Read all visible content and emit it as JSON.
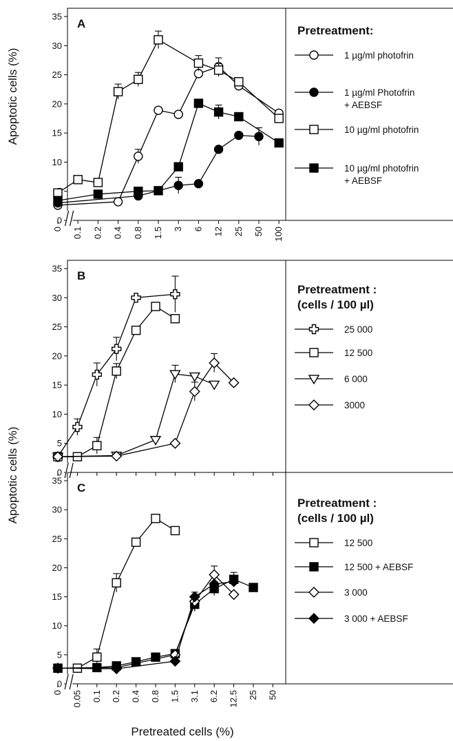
{
  "figure": {
    "y_axis_label": "Apoptotic  cells  (%)",
    "x_axis_label": "Pretreated  cells  (%)"
  },
  "chart_data": [
    {
      "panel": "A",
      "type": "line",
      "yticks": [
        "0",
        "5",
        "10",
        "15",
        "20",
        "25",
        "30",
        "35"
      ],
      "ylim": [
        0,
        35
      ],
      "categories": [
        "0",
        "0.1",
        "0.2",
        "0.4",
        "0.8",
        "1.5",
        "3",
        "6",
        "12",
        "25",
        "50",
        "100"
      ],
      "axis_break_after_first": true,
      "legend_title": "Pretreatment:",
      "series": [
        {
          "name": "1 µg/ml photofrin",
          "marker": "circle",
          "fill": "open",
          "points": [
            [
              0,
              2.6
            ],
            [
              3,
              3.2
            ],
            [
              4,
              11
            ],
            [
              5,
              18.9
            ],
            [
              6,
              18.2
            ],
            [
              7,
              25.2
            ],
            [
              8,
              26.4
            ],
            [
              9,
              23.1
            ],
            [
              11,
              18.4
            ]
          ],
          "errors": [
            null,
            null,
            1.2,
            null,
            null,
            null,
            1.5,
            null,
            null
          ]
        },
        {
          "name": "1 µg/ml Photofrin\n+ AEBSF",
          "marker": "circle",
          "fill": "filled",
          "points": [
            [
              0,
              3.0
            ],
            [
              4,
              4.2
            ],
            [
              6,
              6.0
            ],
            [
              7,
              6.3
            ],
            [
              8,
              12.2
            ],
            [
              9,
              14.6
            ],
            [
              10,
              14.4
            ]
          ],
          "errors": [
            null,
            null,
            1.4,
            null,
            null,
            null,
            1.5
          ]
        },
        {
          "name": "10 µg/ml photofrin",
          "marker": "square",
          "fill": "open",
          "points": [
            [
              0,
              4.7
            ],
            [
              1,
              7.0
            ],
            [
              2,
              6.5
            ],
            [
              3,
              22.1
            ],
            [
              4,
              24.2
            ],
            [
              5,
              31.0
            ],
            [
              7,
              27.0
            ],
            [
              8,
              25.8
            ],
            [
              9,
              23.8
            ],
            [
              11,
              17.5
            ]
          ],
          "errors": [
            null,
            null,
            null,
            1.3,
            1.2,
            1.5,
            1.3,
            1.1,
            null,
            null
          ]
        },
        {
          "name": "10 µg/ml photofrin\n+ AEBSF",
          "marker": "square",
          "fill": "filled",
          "points": [
            [
              0,
              3.4
            ],
            [
              2,
              4.5
            ],
            [
              4,
              5.0
            ],
            [
              5,
              5.1
            ],
            [
              6,
              9.2
            ],
            [
              7,
              20.1
            ],
            [
              8,
              18.6
            ],
            [
              9,
              17.8
            ],
            [
              11,
              13.3
            ]
          ],
          "errors": [
            null,
            null,
            null,
            null,
            null,
            null,
            1.2,
            null,
            null
          ]
        }
      ]
    },
    {
      "panel": "B",
      "type": "line",
      "yticks": [
        "0",
        "5",
        "10",
        "15",
        "20",
        "25",
        "30",
        "35"
      ],
      "ylim": [
        0,
        35
      ],
      "categories": [
        "0",
        "0.05",
        "0.1",
        "0.2",
        "0.4",
        "0.8",
        "1.5",
        "3.1",
        "6.2",
        "12.5",
        "25",
        "50"
      ],
      "axis_break_after_first": true,
      "legend_title": "Pretreatment :\n(cells / 100 µl)",
      "series": [
        {
          "name": "25 000",
          "marker": "cross",
          "fill": "open",
          "points": [
            [
              0,
              2.7
            ],
            [
              1,
              7.8
            ],
            [
              2,
              16.8
            ],
            [
              3,
              21.2
            ],
            [
              4,
              30.0
            ],
            [
              6,
              30.6
            ]
          ],
          "errors": [
            null,
            1.4,
            2.0,
            2.0,
            null,
            3.1
          ]
        },
        {
          "name": "12 500",
          "marker": "square",
          "fill": "open",
          "points": [
            [
              0,
              2.7
            ],
            [
              1,
              2.7
            ],
            [
              2,
              4.6
            ],
            [
              3,
              17.4
            ],
            [
              4,
              24.4
            ],
            [
              5,
              28.5
            ],
            [
              6,
              26.4
            ]
          ],
          "errors": [
            null,
            null,
            1.4,
            1.3,
            null,
            null,
            null
          ]
        },
        {
          "name": "6 000",
          "marker": "triangle-down",
          "fill": "open",
          "points": [
            [
              0,
              2.7
            ],
            [
              3,
              2.9
            ],
            [
              5,
              5.6
            ],
            [
              6,
              16.9
            ],
            [
              7,
              16.5
            ],
            [
              8,
              15.1
            ]
          ],
          "errors": [
            null,
            null,
            null,
            1.5,
            null,
            null
          ]
        },
        {
          "name": "3000",
          "marker": "diamond",
          "fill": "open",
          "points": [
            [
              0,
              2.7
            ],
            [
              3,
              2.8
            ],
            [
              6,
              5.0
            ],
            [
              7,
              13.9
            ],
            [
              8,
              18.8
            ],
            [
              9,
              15.4
            ]
          ],
          "errors": [
            null,
            null,
            null,
            1.6,
            1.6,
            null
          ]
        }
      ]
    },
    {
      "panel": "C",
      "type": "line",
      "yticks": [
        "0",
        "5",
        "10",
        "15",
        "20",
        "25",
        "30",
        "35"
      ],
      "ylim": [
        0,
        35
      ],
      "categories": [
        "0",
        "0.05",
        "0.1",
        "0.2",
        "0.4",
        "0.8",
        "1.5",
        "3.1",
        "6.2",
        "12.5",
        "25",
        "50"
      ],
      "axis_break_after_first": true,
      "legend_title": "Pretreatment :\n(cells / 100 µl)",
      "series": [
        {
          "name": "12 500",
          "marker": "square",
          "fill": "open",
          "points": [
            [
              0,
              2.7
            ],
            [
              1,
              2.7
            ],
            [
              2,
              4.6
            ],
            [
              3,
              17.4
            ],
            [
              4,
              24.4
            ],
            [
              5,
              28.5
            ],
            [
              6,
              26.4
            ]
          ],
          "errors": [
            null,
            null,
            1.4,
            1.6,
            null,
            null,
            null
          ]
        },
        {
          "name": "12 500 + AEBSF",
          "marker": "square",
          "fill": "filled",
          "points": [
            [
              0,
              2.7
            ],
            [
              2,
              2.8
            ],
            [
              3,
              3.1
            ],
            [
              4,
              3.8
            ],
            [
              5,
              4.6
            ],
            [
              6,
              5.2
            ],
            [
              7,
              13.7
            ],
            [
              8,
              16.4
            ],
            [
              9,
              18.0
            ],
            [
              10,
              16.6
            ]
          ],
          "errors": [
            null,
            null,
            null,
            null,
            null,
            null,
            1.2,
            1.2,
            1.2,
            null
          ]
        },
        {
          "name": "3 000",
          "marker": "diamond",
          "fill": "open",
          "points": [
            [
              0,
              2.7
            ],
            [
              3,
              2.8
            ],
            [
              6,
              5.0
            ],
            [
              7,
              14.2
            ],
            [
              8,
              18.8
            ],
            [
              9,
              15.4
            ]
          ],
          "errors": [
            null,
            null,
            null,
            1.6,
            1.5,
            null
          ]
        },
        {
          "name": "3 000 + AEBSF",
          "marker": "diamond",
          "fill": "filled",
          "points": [
            [
              0,
              2.7
            ],
            [
              3,
              2.6
            ],
            [
              6,
              3.9
            ],
            [
              7,
              15.0
            ],
            [
              8,
              17.2
            ],
            [
              9,
              17.6
            ]
          ],
          "errors": [
            null,
            null,
            null,
            null,
            null,
            null
          ]
        }
      ]
    }
  ]
}
